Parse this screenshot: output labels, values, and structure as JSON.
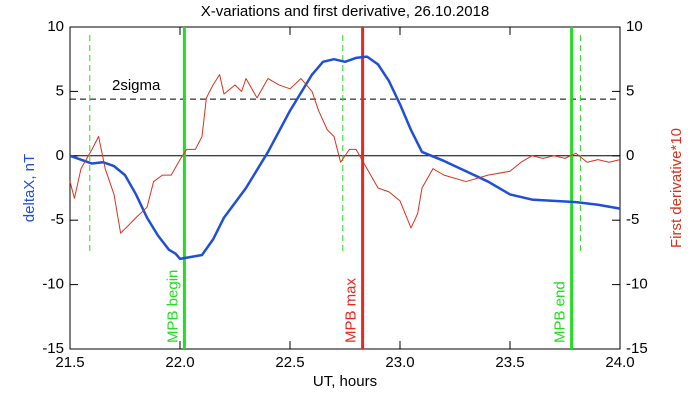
{
  "chart_data": {
    "type": "line",
    "title": "X-variations and first derivative, 26.10.2018",
    "xlabel": "UT, hours",
    "ylabel": "deltaX, nT",
    "y2label": "First derivative*10",
    "xlim": [
      21.5,
      24.0
    ],
    "xticks": [
      21.5,
      {
        "value": 22,
        "label": "22.0"
      },
      22.5,
      {
        "value": 23,
        "label": "23.0"
      },
      23.5,
      {
        "value": 24,
        "label": "24.0"
      }
    ],
    "ylim": [
      -15,
      10
    ],
    "yticks": [
      -15,
      -10,
      -5,
      0,
      5,
      10
    ],
    "y2lim": [
      -15,
      10
    ],
    "y2ticks": [
      -15,
      -10,
      -5,
      0,
      5,
      10
    ],
    "series": [
      {
        "color": "#1f4fd6",
        "axis": "y",
        "x": [
          21.5,
          21.55,
          21.6,
          21.65,
          21.7,
          21.75,
          21.8,
          21.85,
          21.9,
          21.95,
          21.98,
          22.0,
          22.1,
          22.15,
          22.2,
          22.3,
          22.4,
          22.5,
          22.6,
          22.65,
          22.7,
          22.75,
          22.8,
          22.85,
          22.9,
          22.95,
          23.0,
          23.05,
          23.1,
          23.2,
          23.3,
          23.4,
          23.5,
          23.6,
          23.7,
          23.8,
          23.9,
          24.0
        ],
        "values": [
          0,
          -0.3,
          -0.6,
          -0.5,
          -0.8,
          -1.5,
          -3,
          -4.8,
          -6.2,
          -7.3,
          -7.6,
          -8.0,
          -7.7,
          -6.5,
          -4.8,
          -2.5,
          0.3,
          3.5,
          6.3,
          7.3,
          7.5,
          7.3,
          7.6,
          7.7,
          7.1,
          5.8,
          4,
          2,
          0.3,
          -0.4,
          -1.2,
          -2.0,
          -3.0,
          -3.4,
          -3.5,
          -3.6,
          -3.8,
          -4.1
        ]
      },
      {
        "color": "#d8321e",
        "axis": "y2",
        "x": [
          21.5,
          21.52,
          21.55,
          21.6,
          21.63,
          21.66,
          21.7,
          21.73,
          21.76,
          21.8,
          21.85,
          21.88,
          21.92,
          21.96,
          22.0,
          22.03,
          22.07,
          22.1,
          22.12,
          22.15,
          22.18,
          22.2,
          22.25,
          22.28,
          22.3,
          22.35,
          22.4,
          22.45,
          22.5,
          22.55,
          22.6,
          22.63,
          22.67,
          22.7,
          22.73,
          22.77,
          22.8,
          22.85,
          22.9,
          22.95,
          23.0,
          23.05,
          23.08,
          23.1,
          23.15,
          23.2,
          23.3,
          23.4,
          23.5,
          23.55,
          23.6,
          23.65,
          23.7,
          23.75,
          23.8,
          23.85,
          23.9,
          23.95,
          24.0
        ],
        "values": [
          -2,
          -3.3,
          -1,
          0.5,
          1.5,
          -1,
          -3,
          -6,
          -5.5,
          -4.8,
          -4,
          -2,
          -1.5,
          -1.5,
          -0.3,
          0.5,
          0.5,
          1.5,
          4.5,
          5.5,
          6.3,
          4.8,
          5.5,
          5.0,
          6,
          4.5,
          6.0,
          5.5,
          5.2,
          6.0,
          5.0,
          3.5,
          2,
          1.5,
          -0.5,
          0.5,
          0.5,
          -1,
          -2.5,
          -2.8,
          -3.5,
          -5.6,
          -4.5,
          -2.5,
          -1,
          -1.5,
          -2,
          -1.5,
          -1.2,
          -0.5,
          0,
          -0.2,
          0,
          -0.2,
          0.2,
          -0.5,
          -0.3,
          -0.5,
          -0.3
        ]
      }
    ],
    "vlines": [
      {
        "x": 21.59,
        "color": "#22dd22",
        "style": "dashed"
      },
      {
        "x": 22.02,
        "color": "#22dd22",
        "style": "solid",
        "label": "MPB begin"
      },
      {
        "x": 22.74,
        "color": "#22dd22",
        "style": "dashed"
      },
      {
        "x": 22.83,
        "color": "#e8281e",
        "style": "solid",
        "label": "MPB max"
      },
      {
        "x": 23.78,
        "color": "#22dd22",
        "style": "solid",
        "label": "MPB end"
      },
      {
        "x": 23.82,
        "color": "#22dd22",
        "style": "dashed"
      }
    ],
    "hlines": [
      {
        "y": 4.4,
        "style": "dashed",
        "label": "2sigma"
      },
      {
        "y": 0,
        "style": "solid"
      }
    ]
  }
}
